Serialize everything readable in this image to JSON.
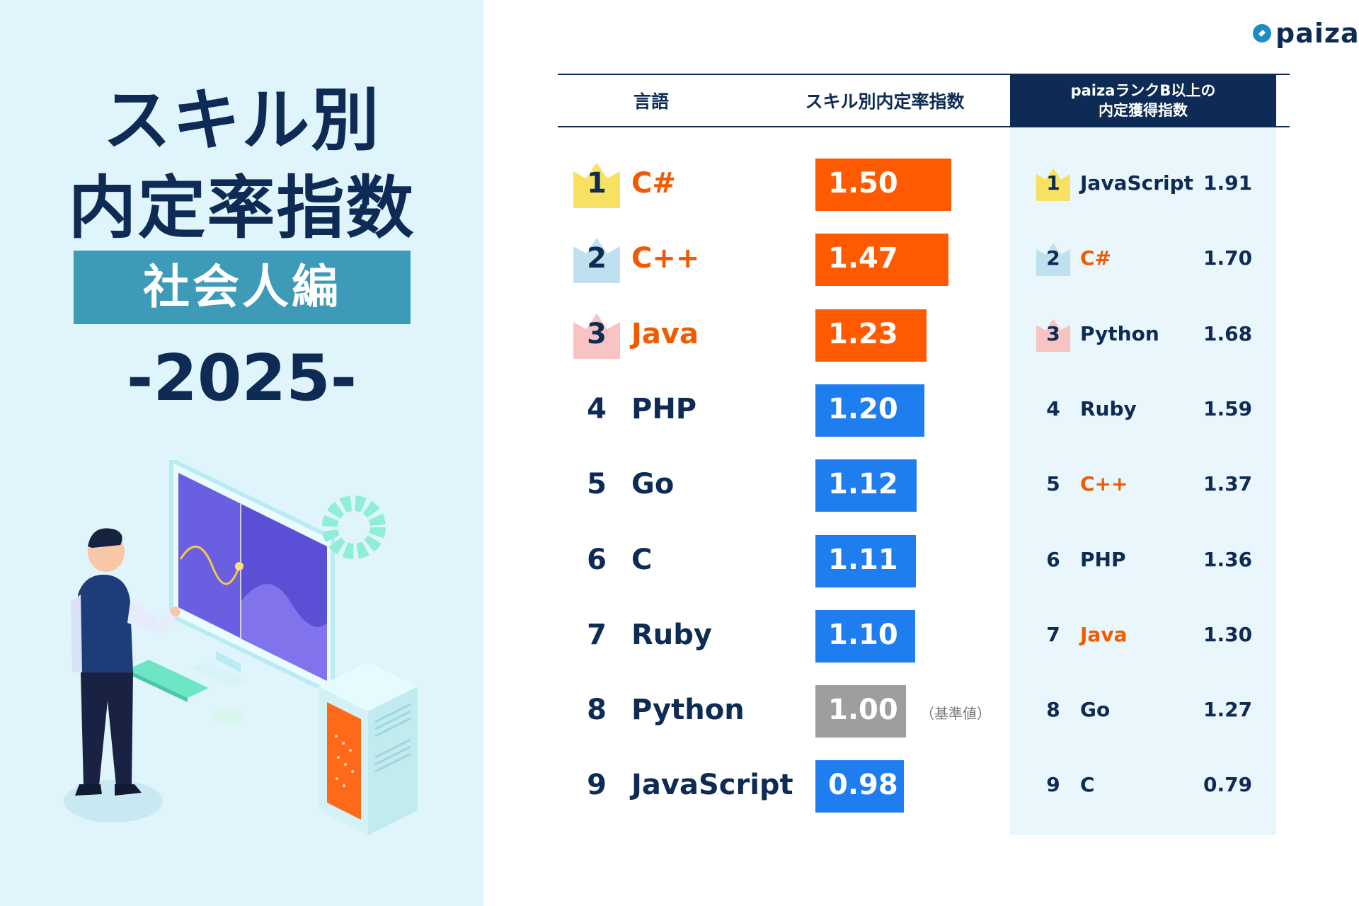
{
  "left": {
    "title_line1": "スキル別",
    "title_line2": "内定率指数",
    "subtitle": "社会人編",
    "year": "-2025-"
  },
  "logo": {
    "text": "paiza",
    "icon": "paiza-logo-icon"
  },
  "header": {
    "col_language": "言語",
    "col_index": "スキル別内定率指数",
    "col_paiza_line1": "paizaランクB以上の",
    "col_paiza_line2": "内定獲得指数"
  },
  "colors": {
    "navy": "#0d2b54",
    "highlight_orange": "#ff5a00",
    "bar_blue": "#1e7ef0",
    "bar_gray": "#9e9e9e",
    "gold": "#f7e062",
    "silver": "#bfe0ef",
    "bronze": "#f7c3c3"
  },
  "chart_data": [
    {
      "type": "bar",
      "title": "スキル別内定率指数",
      "categories": [
        "C#",
        "C++",
        "Java",
        "PHP",
        "Go",
        "C",
        "Ruby",
        "Python",
        "JavaScript"
      ],
      "ranks": [
        "1",
        "2",
        "3",
        "4",
        "5",
        "6",
        "7",
        "8",
        "9"
      ],
      "values": [
        1.5,
        1.47,
        1.23,
        1.2,
        1.12,
        1.11,
        1.1,
        1.0,
        0.98
      ],
      "value_labels": [
        "1.50",
        "1.47",
        "1.23",
        "1.20",
        "1.12",
        "1.11",
        "1.10",
        "1.00",
        "0.98"
      ],
      "bar_colors": [
        "orange",
        "orange",
        "orange",
        "blue",
        "blue",
        "blue",
        "blue",
        "gray",
        "blue"
      ],
      "annotations": [
        {
          "category": "Python",
          "text": "（基準値）"
        }
      ]
    },
    {
      "type": "table",
      "title": "paizaランクB以上の内定獲得指数",
      "ranks": [
        "1",
        "2",
        "3",
        "4",
        "5",
        "6",
        "7",
        "8",
        "9"
      ],
      "categories": [
        "JavaScript",
        "C#",
        "Python",
        "Ruby",
        "C++",
        "PHP",
        "Java",
        "Go",
        "C"
      ],
      "values": [
        1.91,
        1.7,
        1.68,
        1.59,
        1.37,
        1.36,
        1.3,
        1.27,
        0.79
      ],
      "value_labels": [
        "1.91",
        "1.70",
        "1.68",
        "1.59",
        "1.37",
        "1.36",
        "1.30",
        "1.27",
        "0.79"
      ],
      "highlighted": [
        "C#",
        "C++",
        "Java"
      ]
    }
  ]
}
